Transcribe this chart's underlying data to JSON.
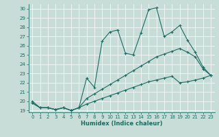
{
  "xlabel": "Humidex (Indice chaleur)",
  "xlim": [
    -0.5,
    23.5
  ],
  "ylim": [
    18.8,
    30.5
  ],
  "xticks": [
    0,
    1,
    2,
    3,
    4,
    5,
    6,
    7,
    8,
    9,
    10,
    11,
    12,
    13,
    14,
    15,
    16,
    17,
    18,
    19,
    20,
    21,
    22,
    23
  ],
  "yticks": [
    19,
    20,
    21,
    22,
    23,
    24,
    25,
    26,
    27,
    28,
    29,
    30
  ],
  "bg_color": "#c8ddd8",
  "line_color": "#1a6b60",
  "grid_color": "#ffffff",
  "line1_x": [
    0,
    1,
    2,
    3,
    4,
    5,
    6,
    7,
    8,
    9,
    10,
    11,
    12,
    13,
    14,
    15,
    16,
    17,
    18,
    19,
    20,
    21,
    22,
    23
  ],
  "line1_y": [
    20.0,
    19.3,
    19.3,
    19.1,
    19.3,
    19.0,
    19.3,
    22.5,
    21.5,
    26.5,
    27.5,
    27.7,
    25.2,
    25.0,
    27.4,
    29.9,
    30.1,
    27.0,
    27.5,
    28.2,
    26.6,
    25.3,
    23.7,
    22.8
  ],
  "line2_x": [
    0,
    1,
    2,
    3,
    4,
    5,
    6,
    7,
    8,
    9,
    10,
    11,
    12,
    13,
    14,
    15,
    16,
    17,
    18,
    19,
    20,
    21,
    22,
    23
  ],
  "line2_y": [
    19.8,
    19.3,
    19.3,
    19.1,
    19.3,
    19.0,
    19.3,
    20.3,
    20.8,
    21.3,
    21.8,
    22.3,
    22.8,
    23.3,
    23.8,
    24.3,
    24.8,
    25.1,
    25.4,
    25.7,
    25.3,
    24.8,
    23.5,
    22.8
  ],
  "line3_x": [
    0,
    1,
    2,
    3,
    4,
    5,
    6,
    7,
    8,
    9,
    10,
    11,
    12,
    13,
    14,
    15,
    16,
    17,
    18,
    19,
    20,
    21,
    22,
    23
  ],
  "line3_y": [
    19.8,
    19.3,
    19.3,
    19.1,
    19.3,
    19.0,
    19.3,
    19.7,
    20.0,
    20.3,
    20.6,
    20.9,
    21.2,
    21.5,
    21.8,
    22.1,
    22.3,
    22.5,
    22.7,
    22.0,
    22.1,
    22.3,
    22.5,
    22.8
  ]
}
